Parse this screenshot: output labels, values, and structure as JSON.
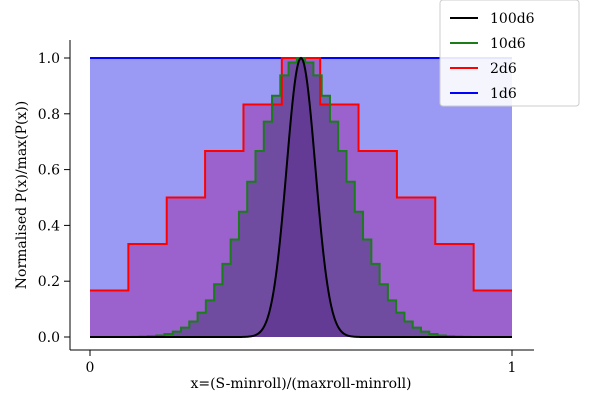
{
  "chart_data": {
    "type": "area",
    "title": "",
    "xlabel": "x=(S-minroll)/(maxroll-minroll)",
    "ylabel": "Normalised P(x)/max(P(x))",
    "xlim": [
      -0.05,
      1.05
    ],
    "ylim": [
      -0.03,
      1.05
    ],
    "xticks": [
      0,
      1
    ],
    "xtick_labels": [
      "0",
      "1"
    ],
    "yticks": [
      0.0,
      0.2,
      0.4,
      0.6,
      0.8,
      1.0
    ],
    "ytick_labels": [
      "0.0",
      "0.2",
      "0.4",
      "0.6",
      "0.8",
      "1.0"
    ],
    "grid": false,
    "legend_position": "top-right",
    "series": [
      {
        "name": "100d6",
        "kind": "gaussian",
        "dice": 100,
        "line_color": "#000000",
        "fill_color": "#5a2d8a",
        "fill_alpha": 0.55
      },
      {
        "name": "10d6",
        "kind": "step",
        "dice": 10,
        "line_color": "#1b7c1b",
        "fill_color": "#4a3a7a",
        "fill_alpha": 0.55
      },
      {
        "name": "2d6",
        "kind": "step",
        "dice": 2,
        "line_color": "#ff0000",
        "fill_color": "#9b4fc0",
        "fill_alpha": 0.75
      },
      {
        "name": "1d6",
        "kind": "step",
        "dice": 1,
        "line_color": "#0000ff",
        "fill_color": "#9a9af5",
        "fill_alpha": 1
      }
    ]
  }
}
